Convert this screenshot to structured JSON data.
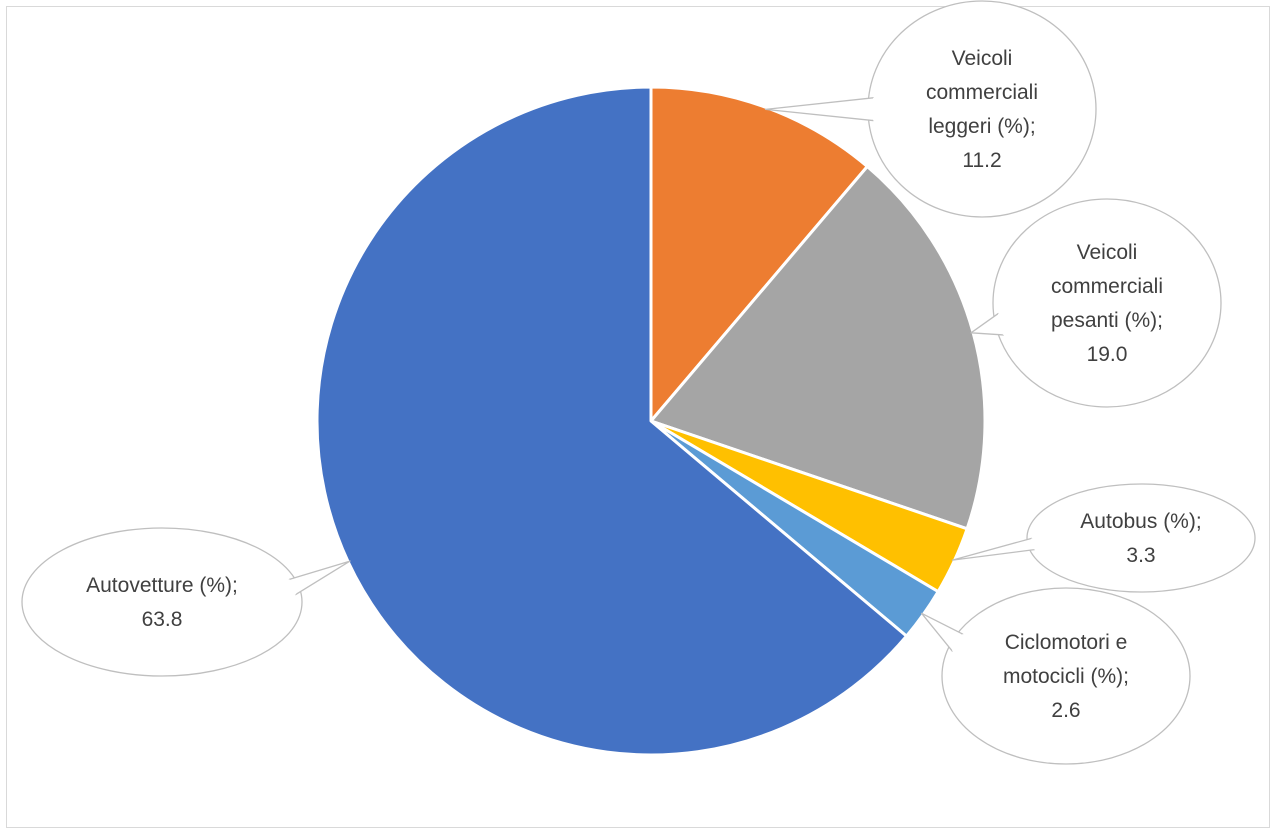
{
  "chart_data": {
    "type": "pie",
    "title": "",
    "slices": [
      {
        "label": "Veicoli commerciali leggeri (%)",
        "value": 11.2,
        "value_text": "11.2",
        "color": "#ED7D31",
        "label_lines": [
          "Veicoli",
          "commerciali",
          "leggeri (%);",
          "11.2"
        ]
      },
      {
        "label": "Veicoli commerciali pesanti (%)",
        "value": 19.0,
        "value_text": "19.0",
        "color": "#A5A5A5",
        "label_lines": [
          "Veicoli",
          "commerciali",
          "pesanti (%);",
          "19.0"
        ]
      },
      {
        "label": "Autobus (%)",
        "value": 3.3,
        "value_text": "3.3",
        "color": "#FFC000",
        "label_lines": [
          "Autobus (%);",
          "3.3"
        ]
      },
      {
        "label": "Ciclomotori e motocicli (%)",
        "value": 2.6,
        "value_text": "2.6",
        "color": "#5B9BD5",
        "label_lines": [
          "Ciclomotori e",
          "motocicli (%);",
          "2.6"
        ]
      },
      {
        "label": "Autovetture (%)",
        "value": 63.8,
        "value_text": "63.8",
        "color": "#4472C4",
        "label_lines": [
          "Autovetture (%);",
          "63.8"
        ]
      }
    ],
    "start_angle": "12 o'clock",
    "direction": "clockwise",
    "data_label_style": "callout"
  }
}
